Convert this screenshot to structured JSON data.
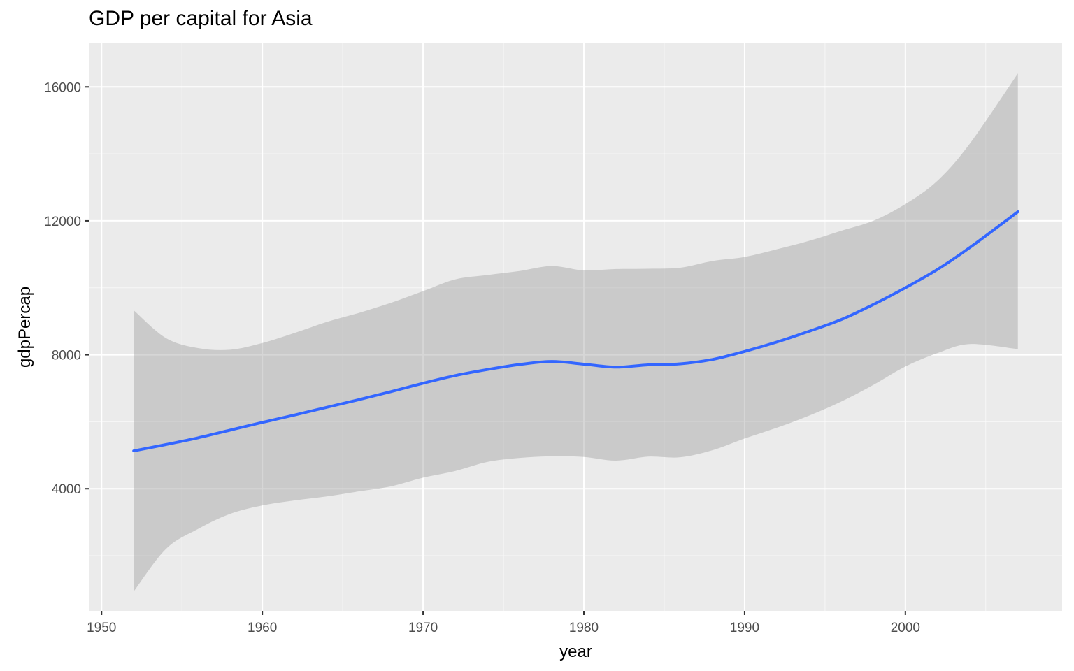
{
  "chart_data": {
    "type": "line",
    "title": "GDP per capital for Asia",
    "xlabel": "year",
    "ylabel": "gdpPercap",
    "xlim": [
      1949.25,
      2009.75
    ],
    "ylim": [
      352,
      17300
    ],
    "x_ticks": [
      1950,
      1960,
      1970,
      1980,
      1990,
      2000
    ],
    "x_tick_labels": [
      "1950",
      "1960",
      "1970",
      "1980",
      "1990",
      "2000"
    ],
    "y_ticks": [
      4000,
      8000,
      12000,
      16000
    ],
    "y_tick_labels": [
      "4000",
      "8000",
      "12000",
      "16000"
    ],
    "grid": true,
    "legend": "none",
    "colors": {
      "panel_background": "#EBEBEB",
      "grid": "#FFFFFF",
      "line": "#3366FF",
      "ribbon": "#999999",
      "tick_label": "#4D4D4D"
    },
    "series": [
      {
        "x": [
          1952,
          1954,
          1956,
          1958,
          1960,
          1962,
          1964,
          1966,
          1968,
          1970,
          1972,
          1974,
          1976,
          1978,
          1980,
          1982,
          1984,
          1986,
          1988,
          1990,
          1992,
          1994,
          1996,
          1998,
          2000,
          2002,
          2004,
          2007
        ],
        "y": [
          5130,
          5320,
          5520,
          5750,
          5980,
          6200,
          6430,
          6660,
          6900,
          7150,
          7380,
          7560,
          7710,
          7800,
          7720,
          7630,
          7700,
          7730,
          7860,
          8100,
          8380,
          8700,
          9050,
          9500,
          10000,
          10550,
          11200,
          12270
        ],
        "ymin": [
          930,
          2200,
          2800,
          3250,
          3500,
          3650,
          3770,
          3920,
          4070,
          4330,
          4530,
          4800,
          4920,
          4970,
          4950,
          4840,
          4960,
          4940,
          5150,
          5500,
          5820,
          6180,
          6600,
          7100,
          7650,
          8050,
          8320,
          8170
        ],
        "ymax": [
          9330,
          8500,
          8200,
          8150,
          8350,
          8650,
          8980,
          9250,
          9550,
          9900,
          10250,
          10380,
          10500,
          10650,
          10520,
          10560,
          10570,
          10600,
          10800,
          10920,
          11150,
          11400,
          11700,
          12000,
          12500,
          13200,
          14300,
          16400
        ]
      }
    ]
  }
}
